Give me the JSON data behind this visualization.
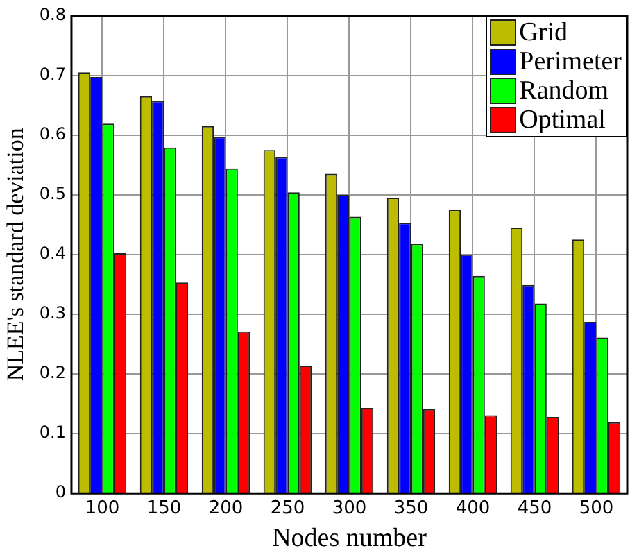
{
  "chart_data": {
    "type": "bar",
    "xlabel": "Nodes number",
    "ylabel": "NLEE's standard deviation",
    "categories": [
      "100",
      "150",
      "200",
      "250",
      "300",
      "350",
      "400",
      "450",
      "500"
    ],
    "series": [
      {
        "name": "Grid",
        "color": "#bcbc00",
        "values": [
          0.705,
          0.665,
          0.615,
          0.575,
          0.535,
          0.495,
          0.475,
          0.445,
          0.425
        ]
      },
      {
        "name": "Perimeter",
        "color": "#0000ff",
        "values": [
          0.697,
          0.657,
          0.597,
          0.563,
          0.5,
          0.453,
          0.4,
          0.349,
          0.287
        ]
      },
      {
        "name": "Random",
        "color": "#00ff00",
        "values": [
          0.619,
          0.579,
          0.544,
          0.504,
          0.463,
          0.418,
          0.364,
          0.318,
          0.261
        ]
      },
      {
        "name": "Optimal",
        "color": "#ff0000",
        "values": [
          0.402,
          0.353,
          0.271,
          0.214,
          0.143,
          0.141,
          0.131,
          0.128,
          0.119
        ]
      }
    ],
    "ylim": [
      0,
      0.8
    ],
    "yticks": [
      0,
      0.1,
      0.2,
      0.3,
      0.4,
      0.5,
      0.6,
      0.7,
      0.8
    ],
    "grid": true,
    "legend": "top right"
  }
}
